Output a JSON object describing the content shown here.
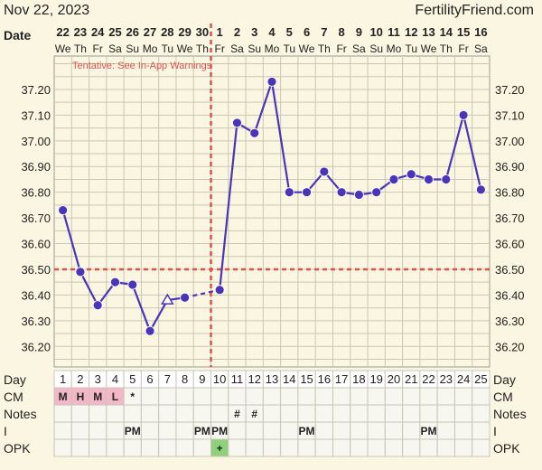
{
  "header": {
    "date": "Nov 22, 2023",
    "brand": "FertilityFriend.com"
  },
  "warning": "Tentative: See In-App Warnings",
  "colors": {
    "background": "#fbf6e1",
    "grid": "#c9c6b4",
    "line": "#4a35b8",
    "coverline": "#d9534f",
    "pink_cell": "#f3b7c8",
    "green_cell": "#8fd17b"
  },
  "chart_data": {
    "type": "line",
    "date_row_label": "Date",
    "dates": [
      "22",
      "23",
      "24",
      "25",
      "26",
      "27",
      "28",
      "29",
      "30",
      "1",
      "2",
      "3",
      "4",
      "5",
      "6",
      "7",
      "8",
      "9",
      "10",
      "11",
      "12",
      "13",
      "14",
      "15",
      "16"
    ],
    "weekdays": [
      "We",
      "Th",
      "Fr",
      "Sa",
      "Su",
      "Mo",
      "Tu",
      "We",
      "Th",
      "Fr",
      "Sa",
      "Su",
      "Mo",
      "Tu",
      "We",
      "Th",
      "Fr",
      "Sa",
      "Su",
      "Mo",
      "Tu",
      "We",
      "Th",
      "Fr",
      "Sa"
    ],
    "cycle_days": [
      "1",
      "2",
      "3",
      "4",
      "5",
      "6",
      "7",
      "8",
      "9",
      "10",
      "11",
      "12",
      "13",
      "14",
      "15",
      "16",
      "17",
      "18",
      "19",
      "20",
      "21",
      "22",
      "23",
      "24",
      "25"
    ],
    "y_ticks": [
      "37.20",
      "37.10",
      "37.00",
      "36.90",
      "36.80",
      "36.70",
      "36.60",
      "36.50",
      "36.40",
      "36.30",
      "36.20"
    ],
    "ylim": [
      36.12,
      37.33
    ],
    "series": [
      {
        "values": [
          36.73,
          36.49,
          36.36,
          36.45,
          36.44,
          36.26,
          36.38,
          36.39,
          null,
          36.42,
          37.07,
          37.03,
          37.23,
          36.8,
          36.8,
          36.88,
          36.8,
          36.79,
          36.8,
          36.85,
          36.87,
          36.85,
          36.85,
          37.1,
          36.81
        ]
      }
    ],
    "open_markers": [
      7
    ],
    "dashed_segments": [
      [
        8,
        10
      ]
    ],
    "coverline": 36.5,
    "ovulation_day": 10,
    "grid": true
  },
  "table": {
    "labels": [
      "Day",
      "CM",
      "Notes",
      "I",
      "OPK"
    ],
    "cm": [
      "M",
      "H",
      "M",
      "L",
      "*",
      "",
      "",
      "",
      "",
      "",
      "",
      "",
      "",
      "",
      "",
      "",
      "",
      "",
      "",
      "",
      "",
      "",
      "",
      "",
      ""
    ],
    "notes": [
      "",
      "",
      "",
      "",
      "",
      "",
      "",
      "",
      "",
      "",
      "#",
      "#",
      "",
      "",
      "",
      "",
      "",
      "",
      "",
      "",
      "",
      "",
      "",
      "",
      ""
    ],
    "i": [
      "",
      "",
      "",
      "",
      "PM",
      "",
      "",
      "",
      "PM",
      "PM",
      "",
      "",
      "",
      "",
      "PM",
      "",
      "",
      "",
      "",
      "",
      "",
      "PM",
      "",
      "",
      ""
    ],
    "opk": [
      "",
      "",
      "",
      "",
      "",
      "",
      "",
      "",
      "",
      "+",
      "",
      "",
      "",
      "",
      "",
      "",
      "",
      "",
      "",
      "",
      "",
      "",
      "",
      "",
      ""
    ]
  }
}
